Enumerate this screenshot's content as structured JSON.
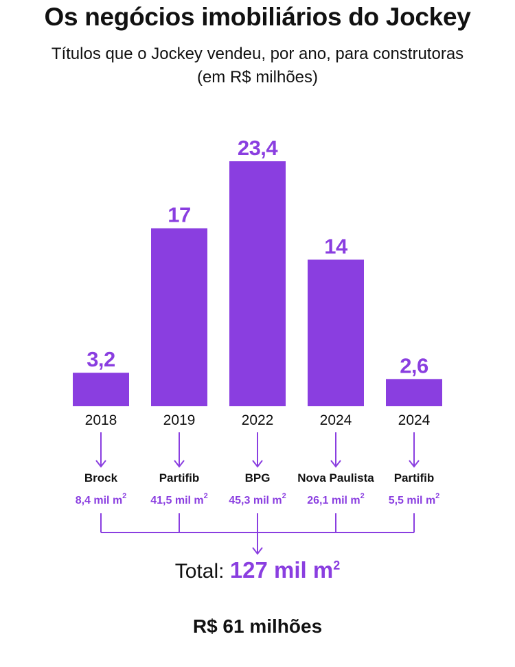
{
  "chart_data": {
    "type": "bar",
    "title": "Os negócios imobiliários do Jockey",
    "subtitle_line1": "Títulos que o Jockey vendeu, por ano, para construtoras",
    "subtitle_line2": "(em R$ milhões)",
    "categories": [
      "2018",
      "2019",
      "2022",
      "2024",
      "2024"
    ],
    "values": [
      3.2,
      17,
      23.4,
      14,
      2.6
    ],
    "value_labels": [
      "3,2",
      "17",
      "23,4",
      "14",
      "2,6"
    ],
    "ylim": [
      0,
      23.4
    ],
    "builders": [
      "Brock",
      "Partifib",
      "BPG",
      "Nova Paulista",
      "Partifib"
    ],
    "areas": [
      "8,4 mil m",
      "41,5 mil m",
      "45,3 mil m",
      "26,1 mil m",
      "5,5 mil m"
    ],
    "area_unit_sup": "2",
    "total_label": "Total:",
    "total_value": "127 mil m",
    "total_sup": "2",
    "money_total": "R$ 61 milhões"
  },
  "colors": {
    "bar": "#8a3ee0",
    "text": "#111111"
  }
}
